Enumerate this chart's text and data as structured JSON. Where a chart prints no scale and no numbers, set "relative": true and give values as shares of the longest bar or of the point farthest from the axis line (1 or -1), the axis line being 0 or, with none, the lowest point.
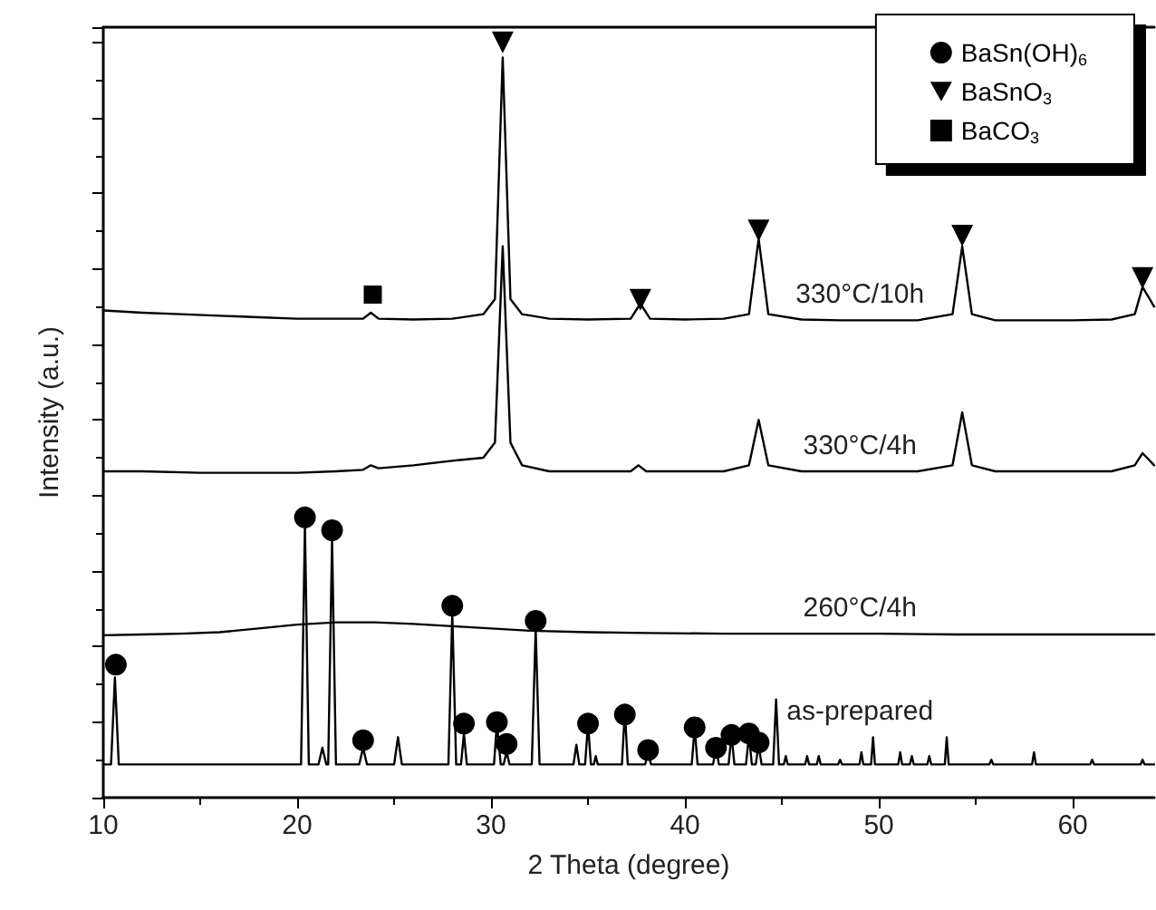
{
  "chart_data": {
    "type": "line",
    "xlabel": "2 Theta (degree)",
    "ylabel": "Intensity (a.u.)",
    "relative": true,
    "tick_labels": "x",
    "grid": false,
    "legend": "top right",
    "xlim": [
      10,
      64.2
    ],
    "xticks": [
      10,
      20,
      30,
      40,
      50,
      60
    ],
    "series": [
      {
        "name": "330°C/10h",
        "color": "#000000",
        "marker": "none",
        "x": [
          10,
          12,
          14,
          16,
          18,
          20,
          22,
          23.4,
          23.8,
          24.2,
          26,
          28,
          29.6,
          30.2,
          30.6,
          31.0,
          31.6,
          33,
          35,
          37.2,
          37.7,
          38.2,
          40,
          42,
          43.3,
          43.8,
          44.3,
          46,
          48,
          50,
          52,
          53.8,
          54.3,
          54.8,
          56,
          58,
          60,
          62,
          63.2,
          63.6,
          64.2
        ],
        "values": [
          0.645,
          0.642,
          0.64,
          0.638,
          0.636,
          0.634,
          0.634,
          0.634,
          0.642,
          0.634,
          0.633,
          0.634,
          0.64,
          0.66,
          0.98,
          0.66,
          0.64,
          0.634,
          0.633,
          0.634,
          0.654,
          0.634,
          0.633,
          0.634,
          0.64,
          0.74,
          0.64,
          0.633,
          0.632,
          0.632,
          0.632,
          0.64,
          0.73,
          0.64,
          0.632,
          0.632,
          0.632,
          0.633,
          0.64,
          0.676,
          0.65
        ]
      },
      {
        "name": "330°C/4h",
        "color": "#000000",
        "marker": "none",
        "x": [
          10,
          12,
          15,
          18,
          20,
          22,
          23.4,
          23.8,
          24.2,
          26,
          28,
          29.6,
          30.2,
          30.6,
          31.0,
          31.6,
          33,
          35,
          37.2,
          37.6,
          38.0,
          40,
          42,
          43.3,
          43.8,
          44.3,
          46,
          48,
          50,
          52,
          53.8,
          54.3,
          54.8,
          56,
          58,
          60,
          62,
          63.2,
          63.6,
          64.2
        ],
        "values": [
          0.432,
          0.432,
          0.43,
          0.43,
          0.43,
          0.432,
          0.434,
          0.44,
          0.436,
          0.44,
          0.446,
          0.45,
          0.47,
          0.73,
          0.47,
          0.44,
          0.432,
          0.432,
          0.432,
          0.44,
          0.432,
          0.432,
          0.432,
          0.44,
          0.5,
          0.44,
          0.432,
          0.432,
          0.432,
          0.432,
          0.44,
          0.51,
          0.44,
          0.432,
          0.432,
          0.432,
          0.432,
          0.44,
          0.456,
          0.44
        ]
      },
      {
        "name": "260°C/4h",
        "color": "#000000",
        "marker": "none",
        "x": [
          10,
          12,
          14,
          16,
          18,
          20,
          22,
          24,
          26,
          28,
          30,
          32,
          35,
          38,
          42,
          46,
          50,
          54,
          58,
          62,
          64.2
        ],
        "values": [
          0.215,
          0.216,
          0.217,
          0.219,
          0.224,
          0.229,
          0.232,
          0.232,
          0.23,
          0.227,
          0.224,
          0.221,
          0.219,
          0.218,
          0.217,
          0.217,
          0.217,
          0.216,
          0.216,
          0.216,
          0.216
        ]
      },
      {
        "name": "as-prepared",
        "color": "#000000",
        "marker": "none",
        "x": [
          10,
          10.4,
          10.6,
          10.8,
          20.2,
          20.4,
          20.6,
          21.1,
          21.3,
          21.5,
          21.6,
          21.8,
          22.0,
          23.2,
          23.4,
          23.6,
          25.0,
          25.2,
          25.4,
          27.8,
          28.0,
          28.2,
          28.45,
          28.6,
          28.75,
          30.15,
          30.3,
          30.5,
          30.65,
          30.8,
          30.95,
          32.1,
          32.3,
          32.5,
          34.25,
          34.4,
          34.55,
          34.85,
          35.0,
          35.15,
          35.3,
          35.4,
          35.5,
          36.75,
          36.9,
          37.05,
          37.95,
          38.1,
          38.25,
          40.35,
          40.5,
          40.65,
          41.45,
          41.6,
          41.75,
          42.25,
          42.4,
          42.55,
          43.15,
          43.3,
          43.45,
          43.65,
          43.8,
          43.95,
          44.55,
          44.7,
          44.85,
          45.1,
          45.2,
          45.3,
          46.2,
          46.3,
          46.4,
          46.8,
          46.9,
          47.0,
          47.9,
          48.0,
          48.1,
          49.0,
          49.1,
          49.2,
          49.6,
          49.7,
          49.8,
          51.0,
          51.1,
          51.2,
          51.6,
          51.7,
          51.8,
          52.5,
          52.6,
          52.7,
          53.4,
          53.5,
          53.6,
          55.7,
          55.8,
          55.9,
          57.9,
          58.0,
          58.1,
          60.9,
          61.0,
          61.1,
          63.5,
          63.6,
          63.7,
          64.2
        ],
        "values": [
          0.044,
          0.044,
          0.159,
          0.044,
          0.044,
          0.361,
          0.044,
          0.044,
          0.066,
          0.044,
          0.044,
          0.341,
          0.044,
          0.044,
          0.066,
          0.044,
          0.044,
          0.08,
          0.044,
          0.044,
          0.244,
          0.044,
          0.044,
          0.085,
          0.044,
          0.044,
          0.098,
          0.044,
          0.044,
          0.061,
          0.044,
          0.044,
          0.224,
          0.044,
          0.044,
          0.07,
          0.044,
          0.044,
          0.098,
          0.044,
          0.044,
          0.055,
          0.044,
          0.044,
          0.115,
          0.044,
          0.044,
          0.06,
          0.044,
          0.044,
          0.093,
          0.044,
          0.044,
          0.066,
          0.044,
          0.044,
          0.083,
          0.044,
          0.044,
          0.083,
          0.044,
          0.044,
          0.07,
          0.044,
          0.044,
          0.13,
          0.044,
          0.044,
          0.055,
          0.044,
          0.044,
          0.055,
          0.044,
          0.044,
          0.055,
          0.044,
          0.044,
          0.05,
          0.044,
          0.044,
          0.06,
          0.044,
          0.044,
          0.08,
          0.044,
          0.044,
          0.06,
          0.044,
          0.044,
          0.055,
          0.044,
          0.044,
          0.055,
          0.044,
          0.044,
          0.08,
          0.044,
          0.044,
          0.05,
          0.044,
          0.044,
          0.06,
          0.044,
          0.044,
          0.05,
          0.044,
          0.044,
          0.05,
          0.044,
          0.044
        ]
      },
      {
        "type": "scatter",
        "name": "BaSn(OH)$_{6}$",
        "color": "#000000",
        "marker": "circle",
        "x": [
          10.65,
          20.4,
          21.8,
          23.4,
          28.0,
          28.6,
          30.3,
          30.8,
          32.3,
          35.0,
          36.9,
          38.1,
          40.5,
          41.6,
          42.4,
          43.3,
          43.8
        ],
        "values": [
          0.176,
          0.371,
          0.354,
          0.076,
          0.254,
          0.098,
          0.1,
          0.071,
          0.234,
          0.098,
          0.11,
          0.063,
          0.093,
          0.066,
          0.083,
          0.085,
          0.073
        ]
      },
      {
        "type": "scatter",
        "name": "BaSnO$_{3}$",
        "color": "#000000",
        "marker": "triangle",
        "x": [
          30.6,
          37.7,
          43.8,
          54.3,
          63.6
        ],
        "values": [
          1.0,
          0.659,
          0.751,
          0.744,
          0.688
        ]
      },
      {
        "type": "scatter",
        "name": "BaCO$_{3}$",
        "color": "#000000",
        "marker": "square",
        "x": [
          23.9
        ],
        "values": [
          0.666
        ]
      }
    ]
  }
}
